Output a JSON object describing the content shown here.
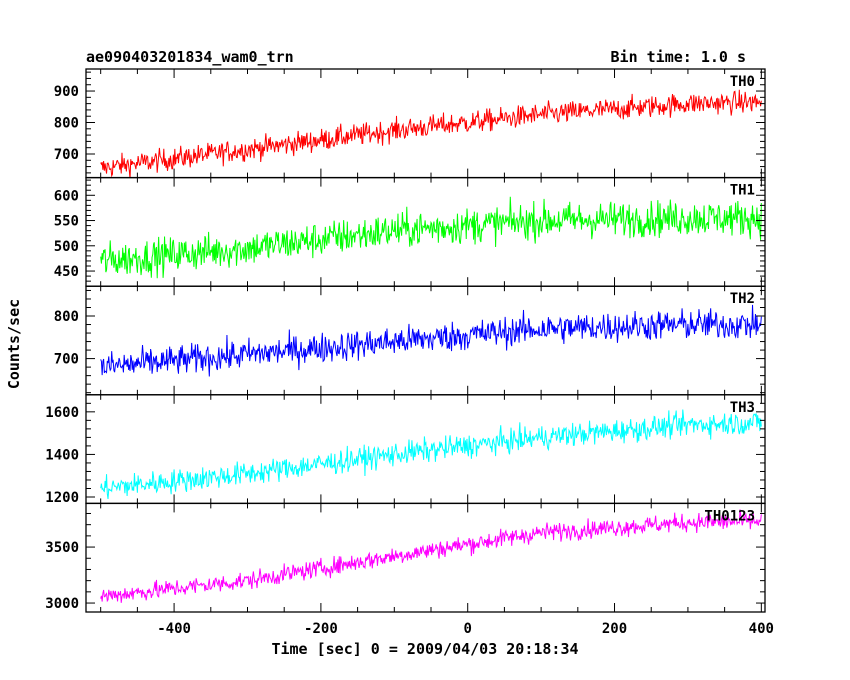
{
  "header": {
    "title": "ae090403201834_wam0_trn",
    "bin_time": "Bin time: 1.0 s"
  },
  "chart_data": {
    "type": "line",
    "xlabel": "Time [sec] 0 = 2009/04/03 20:18:34",
    "ylabel": "Counts/sec",
    "xlim": [
      -520,
      405
    ],
    "x_ticks": [
      -400,
      -200,
      0,
      200,
      400
    ],
    "panels": [
      {
        "name": "TH0",
        "color": "#ff0000",
        "ylim": [
          625,
          970
        ],
        "y_ticks": [
          700,
          800,
          900
        ],
        "trend": {
          "x": [
            -500,
            -300,
            -100,
            100,
            300,
            400
          ],
          "y": [
            655,
            715,
            775,
            825,
            860,
            865
          ]
        },
        "noise_amplitude": 35
      },
      {
        "name": "TH1",
        "color": "#00ff00",
        "ylim": [
          420,
          635
        ],
        "y_ticks": [
          450,
          500,
          550,
          600
        ],
        "trend": {
          "x": [
            -500,
            -300,
            -100,
            100,
            300,
            400
          ],
          "y": [
            470,
            495,
            530,
            550,
            555,
            555
          ]
        },
        "noise_amplitude": 35
      },
      {
        "name": "TH2",
        "color": "#0000ff",
        "ylim": [
          615,
          870
        ],
        "y_ticks": [
          700,
          800
        ],
        "trend": {
          "x": [
            -500,
            -300,
            -100,
            100,
            300,
            400
          ],
          "y": [
            680,
            710,
            740,
            770,
            780,
            780
          ]
        },
        "noise_amplitude": 35
      },
      {
        "name": "TH3",
        "color": "#00ffff",
        "ylim": [
          1170,
          1680
        ],
        "y_ticks": [
          1200,
          1400,
          1600
        ],
        "trend": {
          "x": [
            -500,
            -300,
            -100,
            100,
            300,
            400
          ],
          "y": [
            1240,
            1310,
            1400,
            1480,
            1540,
            1550
          ]
        },
        "noise_amplitude": 55
      },
      {
        "name": "TH0123",
        "color": "#ff00ff",
        "ylim": [
          2920,
          3890
        ],
        "y_ticks": [
          3000,
          3500
        ],
        "trend": {
          "x": [
            -500,
            -300,
            -100,
            100,
            300,
            400
          ],
          "y": [
            3060,
            3200,
            3420,
            3630,
            3720,
            3730
          ]
        },
        "noise_amplitude": 80
      }
    ]
  }
}
